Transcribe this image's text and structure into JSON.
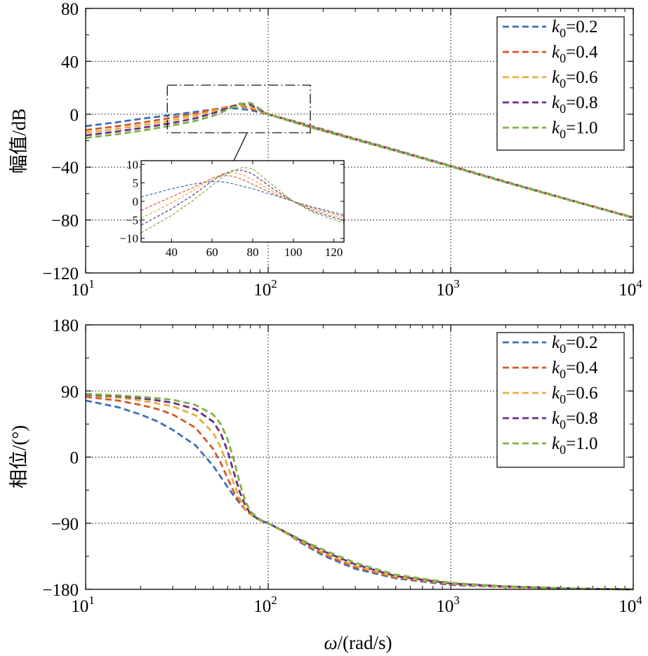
{
  "chart_data": [
    {
      "type": "line",
      "id": "magnitude",
      "ylabel": "幅值/dB",
      "xscale": "log",
      "xlim": [
        10,
        10000
      ],
      "ylim": [
        -120,
        80
      ],
      "yticks": [
        "80",
        "40",
        "0",
        "−40",
        "−80",
        "−120"
      ],
      "yticks_values": [
        80,
        40,
        0,
        -40,
        -80,
        -120
      ],
      "xticks": [
        {
          "base": "10",
          "exp": "1",
          "value": 10
        },
        {
          "base": "10",
          "exp": "2",
          "value": 100
        },
        {
          "base": "10",
          "exp": "3",
          "value": 1000
        },
        {
          "base": "10",
          "exp": "4",
          "value": 10000
        }
      ],
      "grid": true,
      "legend_position": "top-right",
      "x": [
        10,
        15,
        20,
        30,
        40,
        50,
        60,
        70,
        80,
        100,
        150,
        200,
        300,
        500,
        1000,
        2000,
        5000,
        10000
      ],
      "series": [
        {
          "name": "k0=0.2",
          "label_k": "k",
          "label_sub": "0",
          "label_val": "=0.2",
          "color": "#3a70b8",
          "values": [
            -9,
            -6,
            -3.5,
            -0.5,
            1.8,
            3.6,
            4.6,
            4.2,
            3.0,
            0.0,
            -6.5,
            -11.5,
            -18.5,
            -27,
            -39,
            -51,
            -66.5,
            -78
          ]
        },
        {
          "name": "k0=0.4",
          "label_k": "k",
          "label_sub": "0",
          "label_val": "=0.4",
          "color": "#d4582a",
          "values": [
            -12,
            -9,
            -6.5,
            -2.5,
            0.8,
            3.4,
            5.8,
            6.4,
            4.4,
            0.0,
            -6.8,
            -11.8,
            -18.7,
            -27.2,
            -39.2,
            -51.2,
            -66.6,
            -78.1
          ]
        },
        {
          "name": "k0=0.6",
          "label_k": "k",
          "label_sub": "0",
          "label_val": "=0.6",
          "color": "#e8ad3c",
          "values": [
            -14,
            -11,
            -8.5,
            -4.5,
            -1,
            2.5,
            5.6,
            7.2,
            5.6,
            0.0,
            -7.1,
            -12.1,
            -18.9,
            -27.4,
            -39.3,
            -51.3,
            -66.7,
            -78.2
          ]
        },
        {
          "name": "k0=0.8",
          "label_k": "k",
          "label_sub": "0",
          "label_val": "=0.8",
          "color": "#6b2d8a",
          "values": [
            -16,
            -13,
            -10.5,
            -6.5,
            -3,
            0.8,
            4.8,
            8.0,
            7.2,
            0.0,
            -7.4,
            -12.4,
            -19.1,
            -27.6,
            -39.4,
            -51.4,
            -66.8,
            -78.3
          ]
        },
        {
          "name": "k0=1.0",
          "label_k": "k",
          "label_sub": "0",
          "label_val": "=1.0",
          "color": "#7cb342",
          "values": [
            -18,
            -15,
            -12.5,
            -8.5,
            -5,
            -1.2,
            3.5,
            7.8,
            8.6,
            0.0,
            -7.7,
            -12.7,
            -19.3,
            -27.8,
            -39.5,
            -51.5,
            -66.9,
            -78.4
          ]
        }
      ],
      "inset": {
        "xlim": [
          25,
          125
        ],
        "ylim": [
          -11,
          11
        ],
        "xticks": [
          "40",
          "60",
          "80",
          "100",
          "120"
        ],
        "xticks_values": [
          40,
          60,
          80,
          100,
          120
        ],
        "yticks": [
          "10",
          "5",
          "0",
          "−5",
          "−10"
        ],
        "yticks_values": [
          10,
          5,
          0,
          -5,
          -10
        ],
        "zoom_box": {
          "xrange": [
            28,
            170
          ],
          "yrange": [
            -14,
            22
          ]
        },
        "x": [
          25,
          30,
          40,
          50,
          60,
          65,
          70,
          75,
          80,
          90,
          100,
          110,
          125
        ],
        "series": [
          {
            "name": "k0=0.2",
            "values": [
              1.2,
              1.9,
              3.4,
              4.6,
              5.4,
              5.3,
              4.8,
              4.1,
              3.4,
              1.7,
              0.0,
              -1.6,
              -3.6
            ]
          },
          {
            "name": "k0=0.4",
            "values": [
              -2.5,
              -1.2,
              1.2,
              3.6,
              6.2,
              7.0,
              6.8,
              5.9,
              4.6,
              2.1,
              0.0,
              -1.9,
              -4.0
            ]
          },
          {
            "name": "k0=0.6",
            "values": [
              -4.5,
              -3.2,
              -0.4,
              2.7,
              6.2,
              7.5,
              7.8,
              7.2,
              5.9,
              2.7,
              0.0,
              -2.3,
              -4.6
            ]
          },
          {
            "name": "k0=0.8",
            "values": [
              -6.4,
              -5.0,
              -2.0,
              1.5,
              5.5,
              7.2,
              8.3,
              8.4,
              7.4,
              3.4,
              0.0,
              -2.7,
              -5.2
            ]
          },
          {
            "name": "k0=1.0",
            "values": [
              -8.5,
              -7.0,
              -3.8,
              0.0,
              4.3,
              6.5,
              8.2,
              9.2,
              8.8,
              4.3,
              0.0,
              -3.1,
              -5.8
            ]
          }
        ]
      }
    },
    {
      "type": "line",
      "id": "phase",
      "ylabel": "相位/(°)",
      "xlabel_omega": "ω",
      "xlabel_rest": "/(rad/s)",
      "xscale": "log",
      "xlim": [
        10,
        10000
      ],
      "ylim": [
        -180,
        180
      ],
      "yticks": [
        "180",
        "90",
        "0",
        "−90",
        "−180"
      ],
      "yticks_values": [
        180,
        90,
        0,
        -90,
        -180
      ],
      "xticks": [
        {
          "base": "10",
          "exp": "1",
          "value": 10
        },
        {
          "base": "10",
          "exp": "2",
          "value": 100
        },
        {
          "base": "10",
          "exp": "3",
          "value": 1000
        },
        {
          "base": "10",
          "exp": "4",
          "value": 10000
        }
      ],
      "grid": true,
      "legend_position": "top-right",
      "x": [
        10,
        15,
        20,
        25,
        30,
        40,
        50,
        55,
        60,
        65,
        70,
        75,
        80,
        90,
        100,
        120,
        150,
        200,
        300,
        500,
        1000,
        2000,
        5000,
        10000
      ],
      "series": [
        {
          "name": "k0=0.2",
          "values": [
            77,
            68,
            58,
            48,
            37,
            16,
            -12,
            -27,
            -41,
            -53,
            -63,
            -71,
            -77,
            -85,
            -90,
            -100,
            -116,
            -134,
            -152,
            -165,
            -174,
            -177,
            -179,
            -180
          ]
        },
        {
          "name": "k0=0.4",
          "values": [
            82,
            77,
            71,
            65,
            58,
            40,
            11,
            -8,
            -29,
            -48,
            -62,
            -72,
            -78,
            -86,
            -90,
            -101,
            -115,
            -132,
            -150,
            -164,
            -173,
            -177,
            -179,
            -180
          ]
        },
        {
          "name": "k0=0.6",
          "values": [
            84,
            81,
            77,
            73,
            69,
            57,
            33,
            13,
            -12,
            -37,
            -57,
            -71,
            -78,
            -86,
            -90,
            -101,
            -114,
            -130,
            -148,
            -163,
            -172,
            -177,
            -179,
            -180
          ]
        },
        {
          "name": "k0=0.8",
          "values": [
            85,
            83,
            80,
            77,
            74,
            65,
            48,
            32,
            8,
            -22,
            -48,
            -66,
            -77,
            -86,
            -90,
            -100,
            -113,
            -128,
            -146,
            -162,
            -172,
            -176,
            -179,
            -180
          ]
        },
        {
          "name": "k0=1.0",
          "values": [
            86,
            84,
            82,
            80,
            78,
            71,
            58,
            45,
            24,
            -5,
            -36,
            -60,
            -74,
            -85,
            -90,
            -100,
            -112,
            -126,
            -144,
            -160,
            -171,
            -176,
            -179,
            -180
          ]
        }
      ]
    }
  ]
}
